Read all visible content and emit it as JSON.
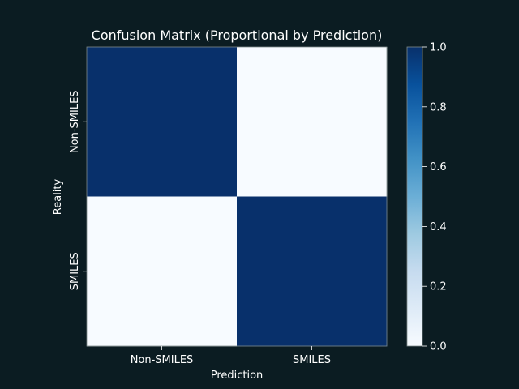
{
  "chart_data": {
    "type": "heatmap",
    "title": "Confusion Matrix (Proportional by Prediction)",
    "xlabel": "Prediction",
    "ylabel": "Reality",
    "x_categories": [
      "Non-SMILES",
      "SMILES"
    ],
    "y_categories": [
      "Non-SMILES",
      "SMILES"
    ],
    "values": [
      [
        1.0,
        0.0
      ],
      [
        0.0,
        1.0
      ]
    ],
    "colorbar": {
      "range": [
        0.0,
        1.0
      ],
      "ticks": [
        "0.0",
        "0.2",
        "0.4",
        "0.6",
        "0.8",
        "1.0"
      ],
      "colormap": "Blues"
    },
    "colors": {
      "background": "#0b1c22",
      "low": "#f7fbff",
      "high": "#08306b",
      "text": "#ffffff"
    }
  }
}
